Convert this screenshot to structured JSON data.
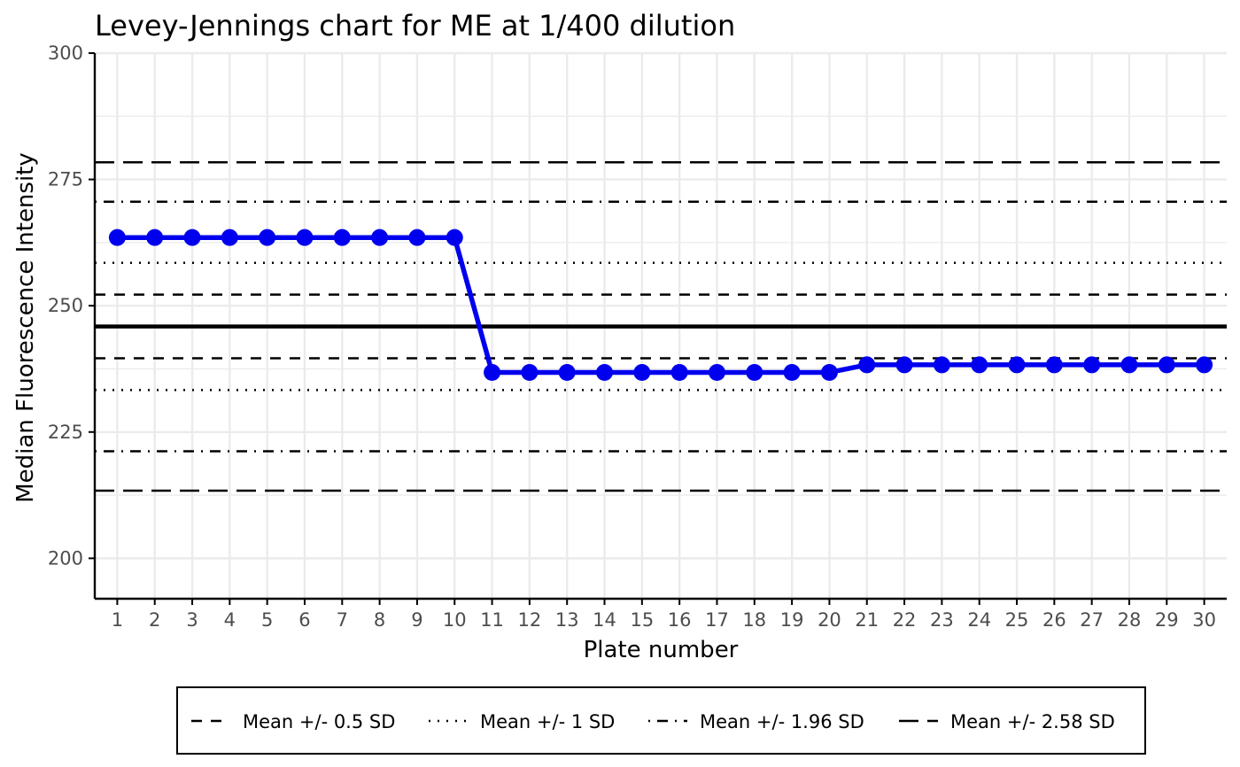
{
  "chart_data": {
    "type": "line",
    "title": "Levey-Jennings chart for ME at 1/400 dilution",
    "xlabel": "Plate number",
    "ylabel": "Median Fluorescence Intensity",
    "x": [
      1,
      2,
      3,
      4,
      5,
      6,
      7,
      8,
      9,
      10,
      11,
      12,
      13,
      14,
      15,
      16,
      17,
      18,
      19,
      20,
      21,
      22,
      23,
      24,
      25,
      26,
      27,
      28,
      29,
      30
    ],
    "x_tick_labels": [
      "1",
      "2",
      "3",
      "4",
      "5",
      "6",
      "7",
      "8",
      "9",
      "10",
      "11",
      "12",
      "13",
      "14",
      "15",
      "16",
      "17",
      "18",
      "19",
      "20",
      "21",
      "22",
      "23",
      "24",
      "25",
      "26",
      "27",
      "28",
      "29",
      "30"
    ],
    "xlim": [
      0.4,
      30.6
    ],
    "ylim": [
      192,
      300
    ],
    "y_ticks": [
      200,
      225,
      250,
      275,
      300
    ],
    "y_tick_labels": [
      "200",
      "225",
      "250",
      "275",
      "300"
    ],
    "series": [
      {
        "values": [
          263.5,
          263.5,
          263.5,
          263.5,
          263.5,
          263.5,
          263.5,
          263.5,
          263.5,
          263.5,
          236.8,
          236.8,
          236.8,
          236.8,
          236.8,
          236.8,
          236.8,
          236.8,
          236.8,
          236.8,
          238.3,
          238.3,
          238.3,
          238.3,
          238.3,
          238.3,
          238.3,
          238.3,
          238.3,
          238.3
        ],
        "color": "#0000ee"
      }
    ],
    "mean": 245.9,
    "reference_lines": [
      {
        "sd": 0.5,
        "label": "Mean +/- 0.5 SD",
        "style": "dashed",
        "values": [
          252.2,
          239.6
        ]
      },
      {
        "sd": 1,
        "label": "Mean +/- 1 SD",
        "style": "dotted",
        "values": [
          258.5,
          233.3
        ]
      },
      {
        "sd": 1.96,
        "label": "Mean +/- 1.96 SD",
        "style": "dotdash",
        "values": [
          270.6,
          221.2
        ]
      },
      {
        "sd": 2.58,
        "label": "Mean +/- 2.58 SD",
        "style": "longdash",
        "values": [
          278.4,
          213.4
        ]
      }
    ],
    "grid": true,
    "legend_position": "bottom",
    "colors": {
      "series": "#0000ee",
      "mean": "#000000",
      "reference": "#000000",
      "grid": "#ebebeb"
    }
  }
}
